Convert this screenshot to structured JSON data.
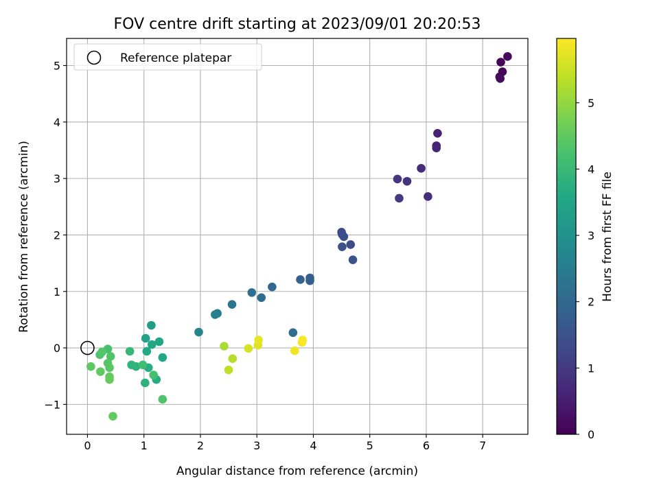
{
  "chart_data": {
    "type": "scatter",
    "title": "FOV centre drift starting at 2023/09/01 20:20:53",
    "xlabel": "Angular distance from reference (arcmin)",
    "ylabel": "Rotation from reference (arcmin)",
    "xlim": [
      -0.37,
      7.8
    ],
    "ylim": [
      -1.53,
      5.48
    ],
    "xticks": [
      0,
      1,
      2,
      3,
      4,
      5,
      6,
      7
    ],
    "yticks": [
      -1,
      0,
      1,
      2,
      3,
      4,
      5
    ],
    "grid": true,
    "legend": {
      "position": "top-left",
      "entries": [
        "Reference platepar"
      ]
    },
    "reference_point": {
      "x": 0,
      "y": 0,
      "label": "Reference platepar"
    },
    "colorbar": {
      "label": "Hours from first FF file",
      "min": 0,
      "max": 5.97,
      "ticks": [
        0,
        1,
        2,
        3,
        4,
        5
      ],
      "colormap": "viridis"
    },
    "points": [
      {
        "x": 7.3,
        "y": 4.8,
        "c": 0.05
      },
      {
        "x": 7.32,
        "y": 5.06,
        "c": 0.08
      },
      {
        "x": 7.35,
        "y": 4.89,
        "c": 0.12
      },
      {
        "x": 7.44,
        "y": 5.16,
        "c": 0.15
      },
      {
        "x": 7.31,
        "y": 4.77,
        "c": 0.18
      },
      {
        "x": 6.2,
        "y": 3.8,
        "c": 0.55
      },
      {
        "x": 6.18,
        "y": 3.58,
        "c": 0.6
      },
      {
        "x": 6.18,
        "y": 3.54,
        "c": 0.62
      },
      {
        "x": 5.91,
        "y": 3.18,
        "c": 0.75
      },
      {
        "x": 6.03,
        "y": 2.68,
        "c": 0.8
      },
      {
        "x": 5.66,
        "y": 2.95,
        "c": 0.9
      },
      {
        "x": 5.49,
        "y": 2.99,
        "c": 0.95
      },
      {
        "x": 5.52,
        "y": 2.65,
        "c": 1.0
      },
      {
        "x": 4.5,
        "y": 2.05,
        "c": 1.3
      },
      {
        "x": 4.51,
        "y": 2.01,
        "c": 1.35
      },
      {
        "x": 4.54,
        "y": 1.97,
        "c": 1.4
      },
      {
        "x": 4.51,
        "y": 1.79,
        "c": 1.45
      },
      {
        "x": 4.66,
        "y": 1.83,
        "c": 1.4
      },
      {
        "x": 4.7,
        "y": 1.56,
        "c": 1.5
      },
      {
        "x": 3.94,
        "y": 1.24,
        "c": 1.75
      },
      {
        "x": 3.94,
        "y": 1.19,
        "c": 1.8
      },
      {
        "x": 3.77,
        "y": 1.21,
        "c": 1.85
      },
      {
        "x": 3.27,
        "y": 1.08,
        "c": 2.0
      },
      {
        "x": 3.08,
        "y": 0.89,
        "c": 2.1
      },
      {
        "x": 2.91,
        "y": 0.98,
        "c": 2.15
      },
      {
        "x": 3.64,
        "y": 0.27,
        "c": 2.1
      },
      {
        "x": 2.56,
        "y": 0.77,
        "c": 2.35
      },
      {
        "x": 2.3,
        "y": 0.61,
        "c": 2.5
      },
      {
        "x": 2.26,
        "y": 0.59,
        "c": 2.55
      },
      {
        "x": 1.97,
        "y": 0.28,
        "c": 2.7
      },
      {
        "x": 1.13,
        "y": 0.4,
        "c": 3.3
      },
      {
        "x": 1.03,
        "y": 0.17,
        "c": 3.4
      },
      {
        "x": 1.27,
        "y": 0.11,
        "c": 3.5
      },
      {
        "x": 1.14,
        "y": 0.06,
        "c": 3.55
      },
      {
        "x": 1.05,
        "y": -0.06,
        "c": 3.6
      },
      {
        "x": 1.33,
        "y": -0.17,
        "c": 3.55
      },
      {
        "x": 1.08,
        "y": -0.35,
        "c": 3.7
      },
      {
        "x": 1.22,
        "y": -0.56,
        "c": 3.65
      },
      {
        "x": 1.02,
        "y": -0.62,
        "c": 3.8
      },
      {
        "x": 0.86,
        "y": -0.33,
        "c": 3.85
      },
      {
        "x": 0.78,
        "y": -0.3,
        "c": 3.9
      },
      {
        "x": 0.75,
        "y": -0.06,
        "c": 3.95
      },
      {
        "x": 0.98,
        "y": -0.3,
        "c": 4.1
      },
      {
        "x": 1.17,
        "y": -0.48,
        "c": 4.2
      },
      {
        "x": 1.33,
        "y": -0.91,
        "c": 4.3
      },
      {
        "x": 0.36,
        "y": -0.02,
        "c": 4.2
      },
      {
        "x": 0.41,
        "y": -0.15,
        "c": 4.3
      },
      {
        "x": 0.22,
        "y": -0.12,
        "c": 4.3
      },
      {
        "x": 0.26,
        "y": -0.07,
        "c": 4.35
      },
      {
        "x": 0.36,
        "y": -0.27,
        "c": 4.35
      },
      {
        "x": 0.39,
        "y": -0.35,
        "c": 4.4
      },
      {
        "x": 0.06,
        "y": -0.33,
        "c": 4.45
      },
      {
        "x": 0.23,
        "y": -0.42,
        "c": 4.5
      },
      {
        "x": 0.39,
        "y": -0.51,
        "c": 4.5
      },
      {
        "x": 0.39,
        "y": -0.56,
        "c": 4.55
      },
      {
        "x": 0.45,
        "y": -1.21,
        "c": 4.5
      },
      {
        "x": 2.42,
        "y": 0.03,
        "c": 5.2
      },
      {
        "x": 2.57,
        "y": -0.19,
        "c": 5.3
      },
      {
        "x": 2.5,
        "y": -0.39,
        "c": 5.4
      },
      {
        "x": 2.85,
        "y": -0.01,
        "c": 5.6
      },
      {
        "x": 3.02,
        "y": 0.05,
        "c": 5.7
      },
      {
        "x": 3.03,
        "y": 0.14,
        "c": 5.75
      },
      {
        "x": 3.67,
        "y": -0.05,
        "c": 5.85
      },
      {
        "x": 3.8,
        "y": 0.1,
        "c": 5.9
      },
      {
        "x": 3.81,
        "y": 0.14,
        "c": 5.95
      }
    ]
  }
}
